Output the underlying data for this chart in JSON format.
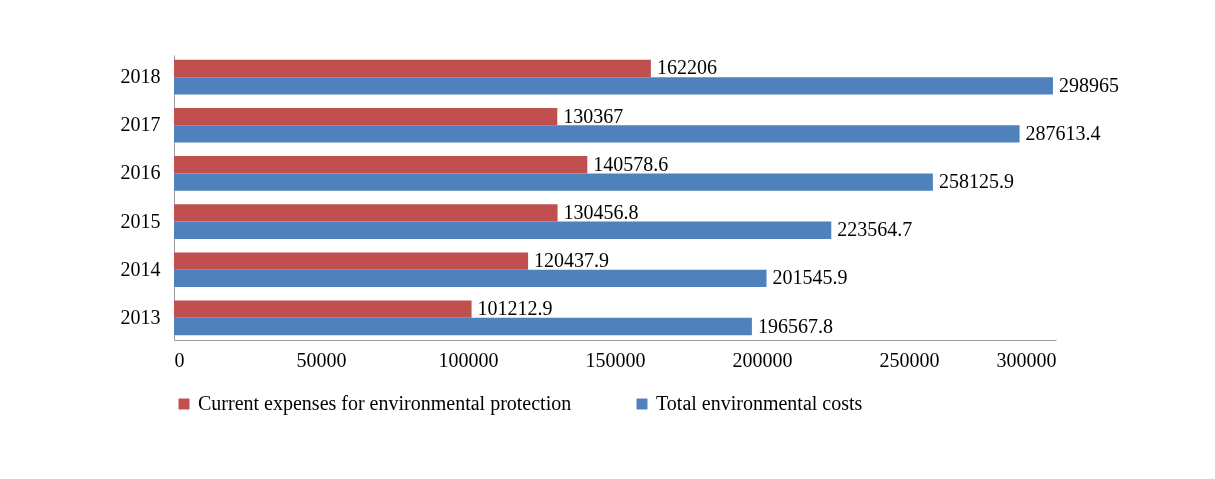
{
  "chart_data": {
    "type": "bar",
    "orientation": "horizontal",
    "categories": [
      "2018",
      "2017",
      "2016",
      "2015",
      "2014",
      "2013"
    ],
    "series": [
      {
        "name": "Current expenses for environmental protection",
        "color": "#c0504d",
        "values": [
          162206,
          130367,
          140578.6,
          130456.8,
          120437.9,
          101212.9
        ]
      },
      {
        "name": "Total environmental costs",
        "color": "#4f81bd",
        "values": [
          298965,
          287613.4,
          258125.9,
          223564.7,
          201545.9,
          196567.8
        ]
      }
    ],
    "xlim": [
      0,
      300000
    ],
    "xticks": [
      0,
      50000,
      100000,
      150000,
      200000,
      250000,
      300000
    ],
    "grid": false,
    "legend": "bottom",
    "data_labels": true
  }
}
